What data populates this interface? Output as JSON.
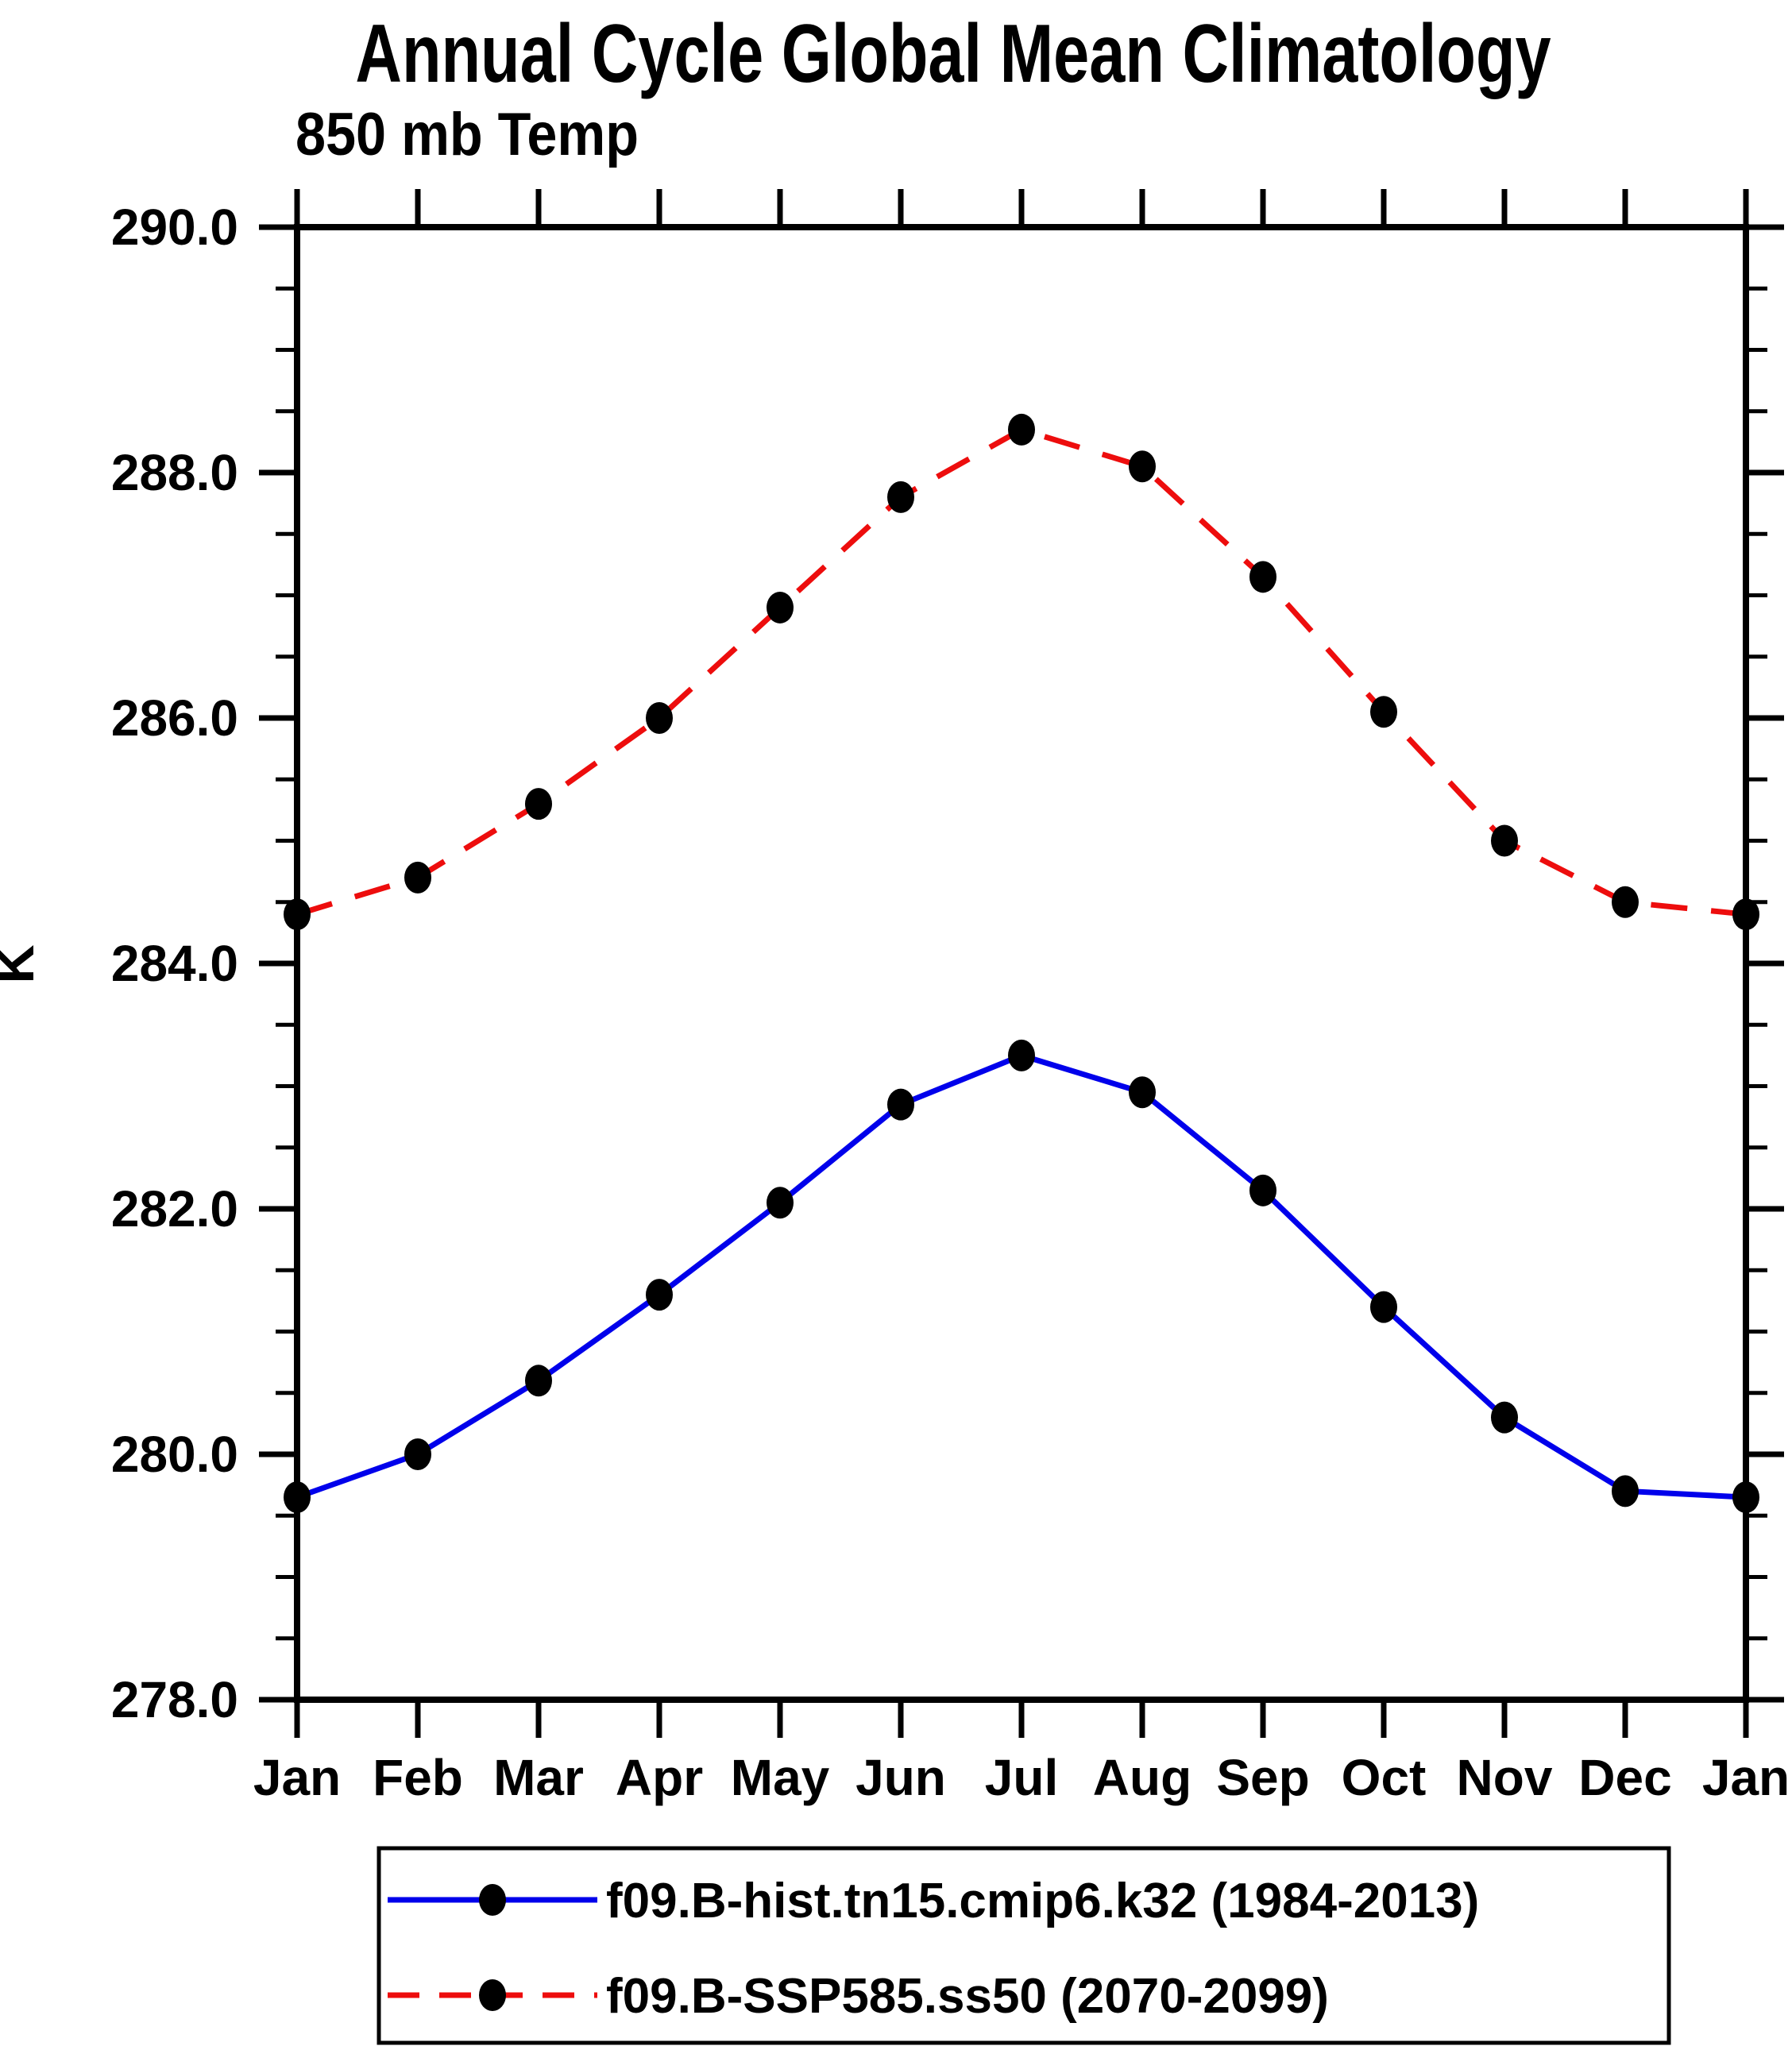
{
  "title": "Annual Cycle Global Mean Climatology",
  "subtitle": "850 mb Temp",
  "y_axis": {
    "label": "K",
    "major_tick_labels": [
      "290.0",
      "288.0",
      "286.0",
      "284.0",
      "282.0",
      "280.0",
      "278.0"
    ],
    "major_tick_values": [
      290,
      288,
      286,
      284,
      282,
      280,
      278
    ],
    "minor_step": 0.5
  },
  "x_axis": {
    "tick_labels": [
      "Jan",
      "Feb",
      "Mar",
      "Apr",
      "May",
      "Jun",
      "Jul",
      "Aug",
      "Sep",
      "Oct",
      "Nov",
      "Dec",
      "Jan"
    ]
  },
  "legend": {
    "entries": [
      {
        "label": "f09.B-hist.tn15.cmip6.k32 (1984-2013)",
        "color": "#0000EB",
        "line_style": "solid"
      },
      {
        "label": "f09.B-SSP585.ss50 (2070-2099)",
        "color": "#ED0D0D",
        "line_style": "dashed"
      }
    ],
    "marker_color": "#000000"
  },
  "chart_data": {
    "type": "line",
    "title": "Annual Cycle Global Mean Climatology",
    "subtitle": "850 mb Temp",
    "categories": [
      "Jan",
      "Feb",
      "Mar",
      "Apr",
      "May",
      "Jun",
      "Jul",
      "Aug",
      "Sep",
      "Oct",
      "Nov",
      "Dec",
      "Jan"
    ],
    "xlabel": "",
    "ylabel": "K",
    "ylim": [
      278.0,
      290.0
    ],
    "ytick_major_step": 2.0,
    "ytick_minor_step": 0.5,
    "grid": false,
    "legend_position": "bottom",
    "series": [
      {
        "name": "f09.B-hist.tn15.cmip6.k32 (1984-2013)",
        "color": "#0000EB",
        "line_style": "solid",
        "marker": "filled-circle",
        "marker_color": "#000000",
        "values": [
          279.65,
          280.0,
          280.6,
          281.3,
          282.05,
          282.85,
          283.25,
          282.95,
          282.15,
          281.2,
          280.3,
          279.7,
          279.65
        ]
      },
      {
        "name": "f09.B-SSP585.ss50 (2070-2099)",
        "color": "#ED0D0D",
        "line_style": "dashed",
        "marker": "filled-circle",
        "marker_color": "#000000",
        "values": [
          284.4,
          284.7,
          285.3,
          286.0,
          286.9,
          287.8,
          288.35,
          288.05,
          287.15,
          286.05,
          285.0,
          284.5,
          284.4
        ]
      }
    ]
  }
}
